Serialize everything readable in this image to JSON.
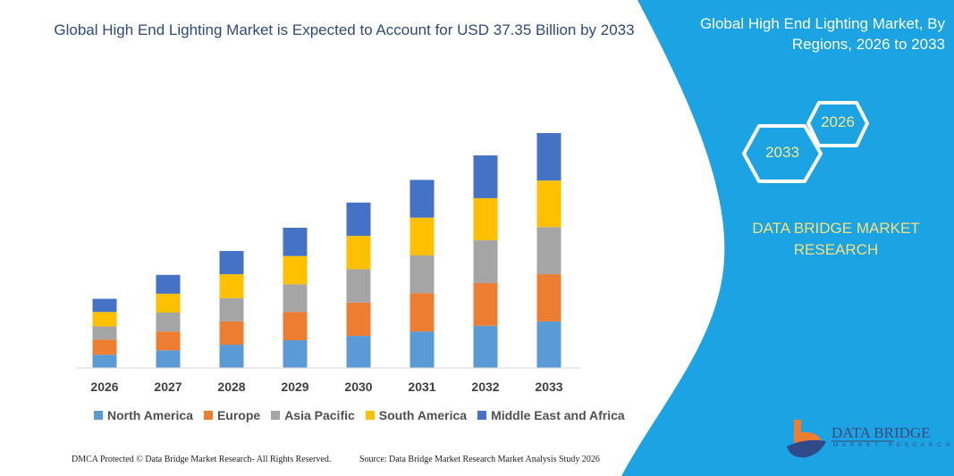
{
  "header": {
    "title": "Global High End Lighting Market is Expected to Account for USD 37.35 Billion by 2033"
  },
  "side_panel": {
    "title": "Global High End Lighting Market, By Regions, 2026 to 2033",
    "hex_start": "2026",
    "hex_end": "2033",
    "brand": "DATA BRIDGE MARKET RESEARCH",
    "logo_text": "DATA BRIDGE",
    "logo_subtext": "MARKET RESEARCH",
    "panel_color": "#1ba3e3"
  },
  "footer": {
    "left": "DMCA Protected © Data Bridge Market Research-  All Rights Reserved.",
    "right": "Source: Data Bridge Market Research  Market Analysis Study 2026"
  },
  "chart_data": {
    "type": "bar",
    "stacked": true,
    "title": "Global High End Lighting Market is Expected to Account for USD 37.35 Billion by 2033",
    "categories": [
      "2026",
      "2027",
      "2028",
      "2029",
      "2030",
      "2031",
      "2032",
      "2033"
    ],
    "series": [
      {
        "name": "North America",
        "color": "#5b9bd5",
        "values": [
          2.1,
          2.8,
          3.7,
          4.4,
          5.1,
          5.8,
          6.7,
          7.4
        ]
      },
      {
        "name": "Europe",
        "color": "#ed7d31",
        "values": [
          2.4,
          3.0,
          3.7,
          4.5,
          5.3,
          6.1,
          6.8,
          7.5
        ]
      },
      {
        "name": "Asia Pacific",
        "color": "#a5a5a5",
        "values": [
          2.1,
          3.0,
          3.7,
          4.4,
          5.3,
          6.0,
          6.8,
          7.5
        ]
      },
      {
        "name": "South America",
        "color": "#ffc000",
        "values": [
          2.3,
          3.0,
          3.8,
          4.5,
          5.3,
          6.0,
          6.7,
          7.4
        ]
      },
      {
        "name": "Middle East and Africa",
        "color": "#4472c4",
        "values": [
          2.1,
          3.0,
          3.7,
          4.5,
          5.3,
          6.0,
          6.8,
          7.55
        ]
      }
    ],
    "ylim": [
      0,
      37.35
    ],
    "y_axis_visible": false,
    "grid": false,
    "legend_position": "bottom"
  }
}
